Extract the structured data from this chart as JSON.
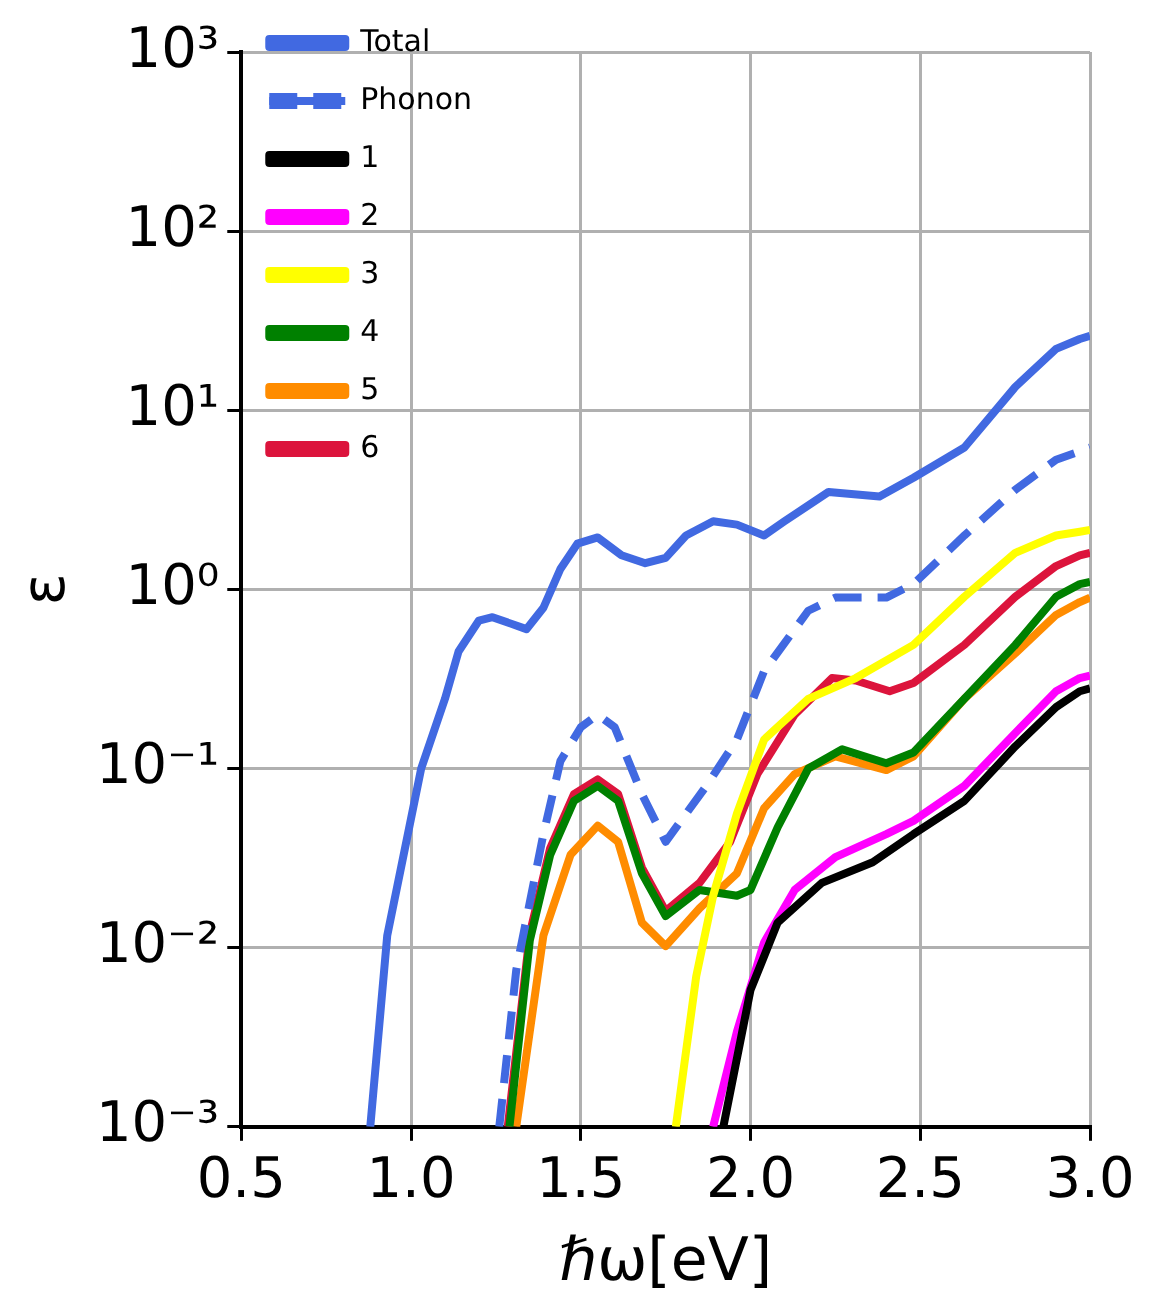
{
  "chart_data": {
    "type": "line",
    "xlabel": "ℏω[eV]",
    "ylabel": "ε",
    "log": "y",
    "grid": true,
    "legend": "top left",
    "line_style": "solid",
    "marker": "none",
    "xlim": [
      0.5,
      3.0
    ],
    "xticks": [
      {
        "value": 0.5,
        "label": "0.5"
      },
      {
        "value": 1.0,
        "label": "1.0"
      },
      {
        "value": 1.5,
        "label": "1.5"
      },
      {
        "value": 2.0,
        "label": "2.0"
      },
      {
        "value": 2.5,
        "label": "2.5"
      },
      {
        "value": 3.0,
        "label": "3.0"
      }
    ],
    "ylim": [
      0.001,
      1000
    ],
    "yticks": [
      {
        "value": 0.001,
        "label": "10⁻³"
      },
      {
        "value": 0.01,
        "label": "10⁻²"
      },
      {
        "value": 0.1,
        "label": "10⁻¹"
      },
      {
        "value": 1,
        "label": "10⁰"
      },
      {
        "value": 10,
        "label": "10¹"
      },
      {
        "value": 100,
        "label": "10²"
      },
      {
        "value": 1000,
        "label": "10³"
      }
    ],
    "series": [
      {
        "name": "Total",
        "color": "#4169e1",
        "x": [
          0.88,
          0.93,
          1.03,
          1.1,
          1.14,
          1.2,
          1.24,
          1.34,
          1.39,
          1.44,
          1.49,
          1.55,
          1.62,
          1.69,
          1.75,
          1.81,
          1.89,
          1.96,
          2.04,
          2.1,
          2.23,
          2.38,
          2.48,
          2.63,
          2.78,
          2.9,
          2.97,
          3.0
        ],
        "values": [
          0.001,
          0.0117,
          0.1,
          0.245,
          0.45,
          0.67,
          0.7,
          0.6,
          0.79,
          1.3,
          1.8,
          1.95,
          1.55,
          1.4,
          1.5,
          2.0,
          2.4,
          2.3,
          2.0,
          2.4,
          3.5,
          3.3,
          4.2,
          6.2,
          13.5,
          22,
          25,
          26
        ]
      },
      {
        "name": "Phonon",
        "color": "#4169e1",
        "line_style": "dashed",
        "x": [
          1.26,
          1.31,
          1.39,
          1.44,
          1.5,
          1.55,
          1.6,
          1.68,
          1.75,
          1.87,
          1.96,
          2.04,
          2.17,
          2.25,
          2.4,
          2.48,
          2.63,
          2.78,
          2.9,
          2.97,
          3.0
        ],
        "values": [
          0.001,
          0.0075,
          0.043,
          0.11,
          0.17,
          0.2,
          0.17,
          0.072,
          0.039,
          0.08,
          0.145,
          0.35,
          0.76,
          0.9,
          0.9,
          1.07,
          2.0,
          3.6,
          5.3,
          5.9,
          6.2
        ]
      },
      {
        "name": "1",
        "color": "#000000",
        "x": [
          1.92,
          2.0,
          2.08,
          2.21,
          2.36,
          2.48,
          2.63,
          2.78,
          2.9,
          2.97,
          3.0
        ],
        "values": [
          0.001,
          0.0058,
          0.0138,
          0.023,
          0.03,
          0.043,
          0.066,
          0.133,
          0.22,
          0.27,
          0.28
        ]
      },
      {
        "name": "2",
        "color": "#ff00ff",
        "x": [
          1.89,
          1.96,
          2.04,
          2.13,
          2.25,
          2.4,
          2.48,
          2.63,
          2.78,
          2.9,
          2.97,
          3.0
        ],
        "values": [
          0.001,
          0.0034,
          0.0107,
          0.021,
          0.032,
          0.043,
          0.051,
          0.08,
          0.158,
          0.27,
          0.32,
          0.33
        ]
      },
      {
        "name": "3",
        "color": "#ffff00",
        "x": [
          1.78,
          1.84,
          1.89,
          1.96,
          2.04,
          2.17,
          2.31,
          2.48,
          2.63,
          2.78,
          2.9,
          2.97,
          3.0
        ],
        "values": [
          0.001,
          0.0069,
          0.0195,
          0.056,
          0.145,
          0.245,
          0.32,
          0.49,
          0.91,
          1.6,
          2.0,
          2.1,
          2.15
        ]
      },
      {
        "name": "4",
        "color": "#008000",
        "x": [
          1.29,
          1.35,
          1.41,
          1.48,
          1.55,
          1.61,
          1.68,
          1.75,
          1.85,
          1.96,
          2.0,
          2.08,
          2.17,
          2.27,
          2.4,
          2.48,
          2.63,
          2.78,
          2.9,
          2.97,
          3.0
        ],
        "values": [
          0.001,
          0.011,
          0.033,
          0.066,
          0.08,
          0.066,
          0.026,
          0.015,
          0.021,
          0.0195,
          0.021,
          0.047,
          0.1,
          0.128,
          0.107,
          0.123,
          0.245,
          0.49,
          0.91,
          1.07,
          1.1
        ]
      },
      {
        "name": "5",
        "color": "#ff8c00",
        "x": [
          1.31,
          1.39,
          1.47,
          1.55,
          1.61,
          1.68,
          1.75,
          1.85,
          1.96,
          2.04,
          2.13,
          2.25,
          2.4,
          2.48,
          2.63,
          2.78,
          2.9,
          2.97,
          3.0
        ],
        "values": [
          0.001,
          0.0117,
          0.033,
          0.048,
          0.039,
          0.0138,
          0.0102,
          0.0166,
          0.026,
          0.06,
          0.093,
          0.117,
          0.098,
          0.117,
          0.245,
          0.44,
          0.72,
          0.85,
          0.9
        ]
      },
      {
        "name": "6",
        "color": "#dc143c",
        "x": [
          1.285,
          1.35,
          1.41,
          1.48,
          1.55,
          1.61,
          1.68,
          1.75,
          1.85,
          1.94,
          2.02,
          2.13,
          2.24,
          2.31,
          2.41,
          2.48,
          2.63,
          2.78,
          2.9,
          2.97,
          3.0
        ],
        "values": [
          0.001,
          0.012,
          0.036,
          0.072,
          0.087,
          0.072,
          0.028,
          0.016,
          0.023,
          0.039,
          0.093,
          0.2,
          0.32,
          0.31,
          0.27,
          0.3,
          0.49,
          0.91,
          1.35,
          1.55,
          1.6
        ]
      }
    ]
  }
}
